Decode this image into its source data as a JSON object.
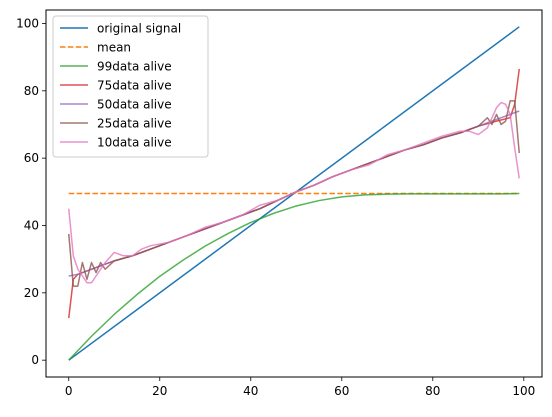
{
  "chart_data": {
    "type": "line",
    "title": "",
    "xlabel": "",
    "ylabel": "",
    "xlim": [
      -5,
      104
    ],
    "ylim": [
      -5,
      104
    ],
    "xticks": [
      0,
      20,
      40,
      60,
      80,
      100
    ],
    "yticks": [
      0,
      20,
      40,
      60,
      80,
      100
    ],
    "xtick_labels": [
      "0",
      "20",
      "40",
      "60",
      "80",
      "100"
    ],
    "ytick_labels": [
      "0",
      "20",
      "40",
      "60",
      "80",
      "100"
    ],
    "grid": false,
    "legend_position": "top-left",
    "series": [
      {
        "name": "original signal",
        "color": "#1f77b4",
        "dash": "solid",
        "x": [
          0,
          99
        ],
        "y": [
          0,
          99
        ]
      },
      {
        "name": "mean",
        "color": "#ff7f0e",
        "dash": "dashed",
        "x": [
          0,
          99
        ],
        "y": [
          49.5,
          49.5
        ]
      },
      {
        "name": "99data alive",
        "color": "#2ca02c",
        "dash": "solid",
        "x": [
          0,
          5,
          10,
          15,
          20,
          25,
          30,
          35,
          40,
          45,
          50,
          55,
          60,
          65,
          70,
          75,
          80,
          85,
          90,
          95,
          99
        ],
        "y": [
          0,
          7.1,
          13.6,
          19.5,
          24.9,
          29.6,
          33.9,
          37.6,
          40.9,
          43.6,
          45.8,
          47.4,
          48.5,
          49.1,
          49.3,
          49.4,
          49.4,
          49.4,
          49.4,
          49.4,
          49.5
        ]
      },
      {
        "name": "75data alive",
        "color": "#d62728",
        "dash": "solid",
        "x": [
          0,
          1,
          2,
          4,
          6,
          8,
          10,
          14,
          18,
          22,
          26,
          30,
          34,
          38,
          42,
          46,
          50,
          54,
          58,
          62,
          66,
          70,
          74,
          78,
          82,
          86,
          90,
          94,
          97,
          98,
          99
        ],
        "y": [
          12.5,
          24,
          25.5,
          26.5,
          27.5,
          28.5,
          29.5,
          31,
          33,
          35,
          37,
          39,
          41,
          43,
          45,
          47.5,
          50,
          52,
          54.5,
          56.5,
          58.5,
          60.5,
          62.5,
          64,
          66,
          67.5,
          69.5,
          71,
          72,
          76,
          86.5
        ]
      },
      {
        "name": "50data alive",
        "color": "#9467bd",
        "dash": "solid",
        "x": [
          0,
          2,
          4,
          6,
          8,
          10,
          14,
          18,
          22,
          26,
          30,
          34,
          38,
          42,
          46,
          50,
          54,
          58,
          62,
          66,
          70,
          74,
          78,
          82,
          86,
          90,
          94,
          97,
          99
        ],
        "y": [
          25,
          25.5,
          26.5,
          27.5,
          28.5,
          29.5,
          31,
          33,
          35,
          37,
          39,
          41,
          43,
          45,
          47.5,
          50,
          52,
          54.5,
          56.5,
          58.5,
          60.5,
          62.5,
          64,
          66,
          67.5,
          69.5,
          71.5,
          73,
          74
        ]
      },
      {
        "name": "25data alive",
        "color": "#8c564b",
        "dash": "solid",
        "x": [
          0,
          1,
          2,
          3,
          4,
          5,
          6,
          7,
          8,
          10,
          14,
          18,
          22,
          26,
          30,
          34,
          38,
          42,
          46,
          50,
          54,
          58,
          62,
          66,
          70,
          74,
          78,
          82,
          86,
          90,
          92,
          93,
          94,
          95,
          96,
          97,
          98,
          99
        ],
        "y": [
          37.5,
          22,
          22,
          29,
          24,
          29,
          26,
          29,
          27,
          29.5,
          31,
          33,
          35,
          37,
          39,
          41,
          43,
          45,
          47.5,
          50,
          52,
          54.5,
          56.5,
          58.5,
          60.5,
          62.5,
          64,
          66,
          67.5,
          69.5,
          72,
          70,
          73,
          70,
          71,
          77,
          77,
          61.5
        ]
      },
      {
        "name": "10data alive",
        "color": "#e377c2",
        "dash": "solid",
        "x": [
          0,
          1,
          2,
          3,
          4,
          5,
          6,
          8,
          10,
          12,
          14,
          16,
          18,
          22,
          26,
          30,
          34,
          38,
          42,
          46,
          50,
          54,
          58,
          62,
          66,
          70,
          74,
          78,
          82,
          86,
          88,
          90,
          92,
          94,
          95,
          96,
          97,
          98,
          99
        ],
        "y": [
          45,
          31,
          27,
          25,
          23,
          23,
          25,
          29,
          32,
          31,
          31,
          33,
          34,
          35,
          37,
          39.5,
          41,
          43,
          46,
          47.5,
          50,
          52,
          54.5,
          56.5,
          58,
          61,
          62.5,
          64.5,
          66.5,
          68,
          68,
          67,
          69,
          75,
          76.5,
          76,
          73,
          63,
          54
        ]
      }
    ]
  }
}
